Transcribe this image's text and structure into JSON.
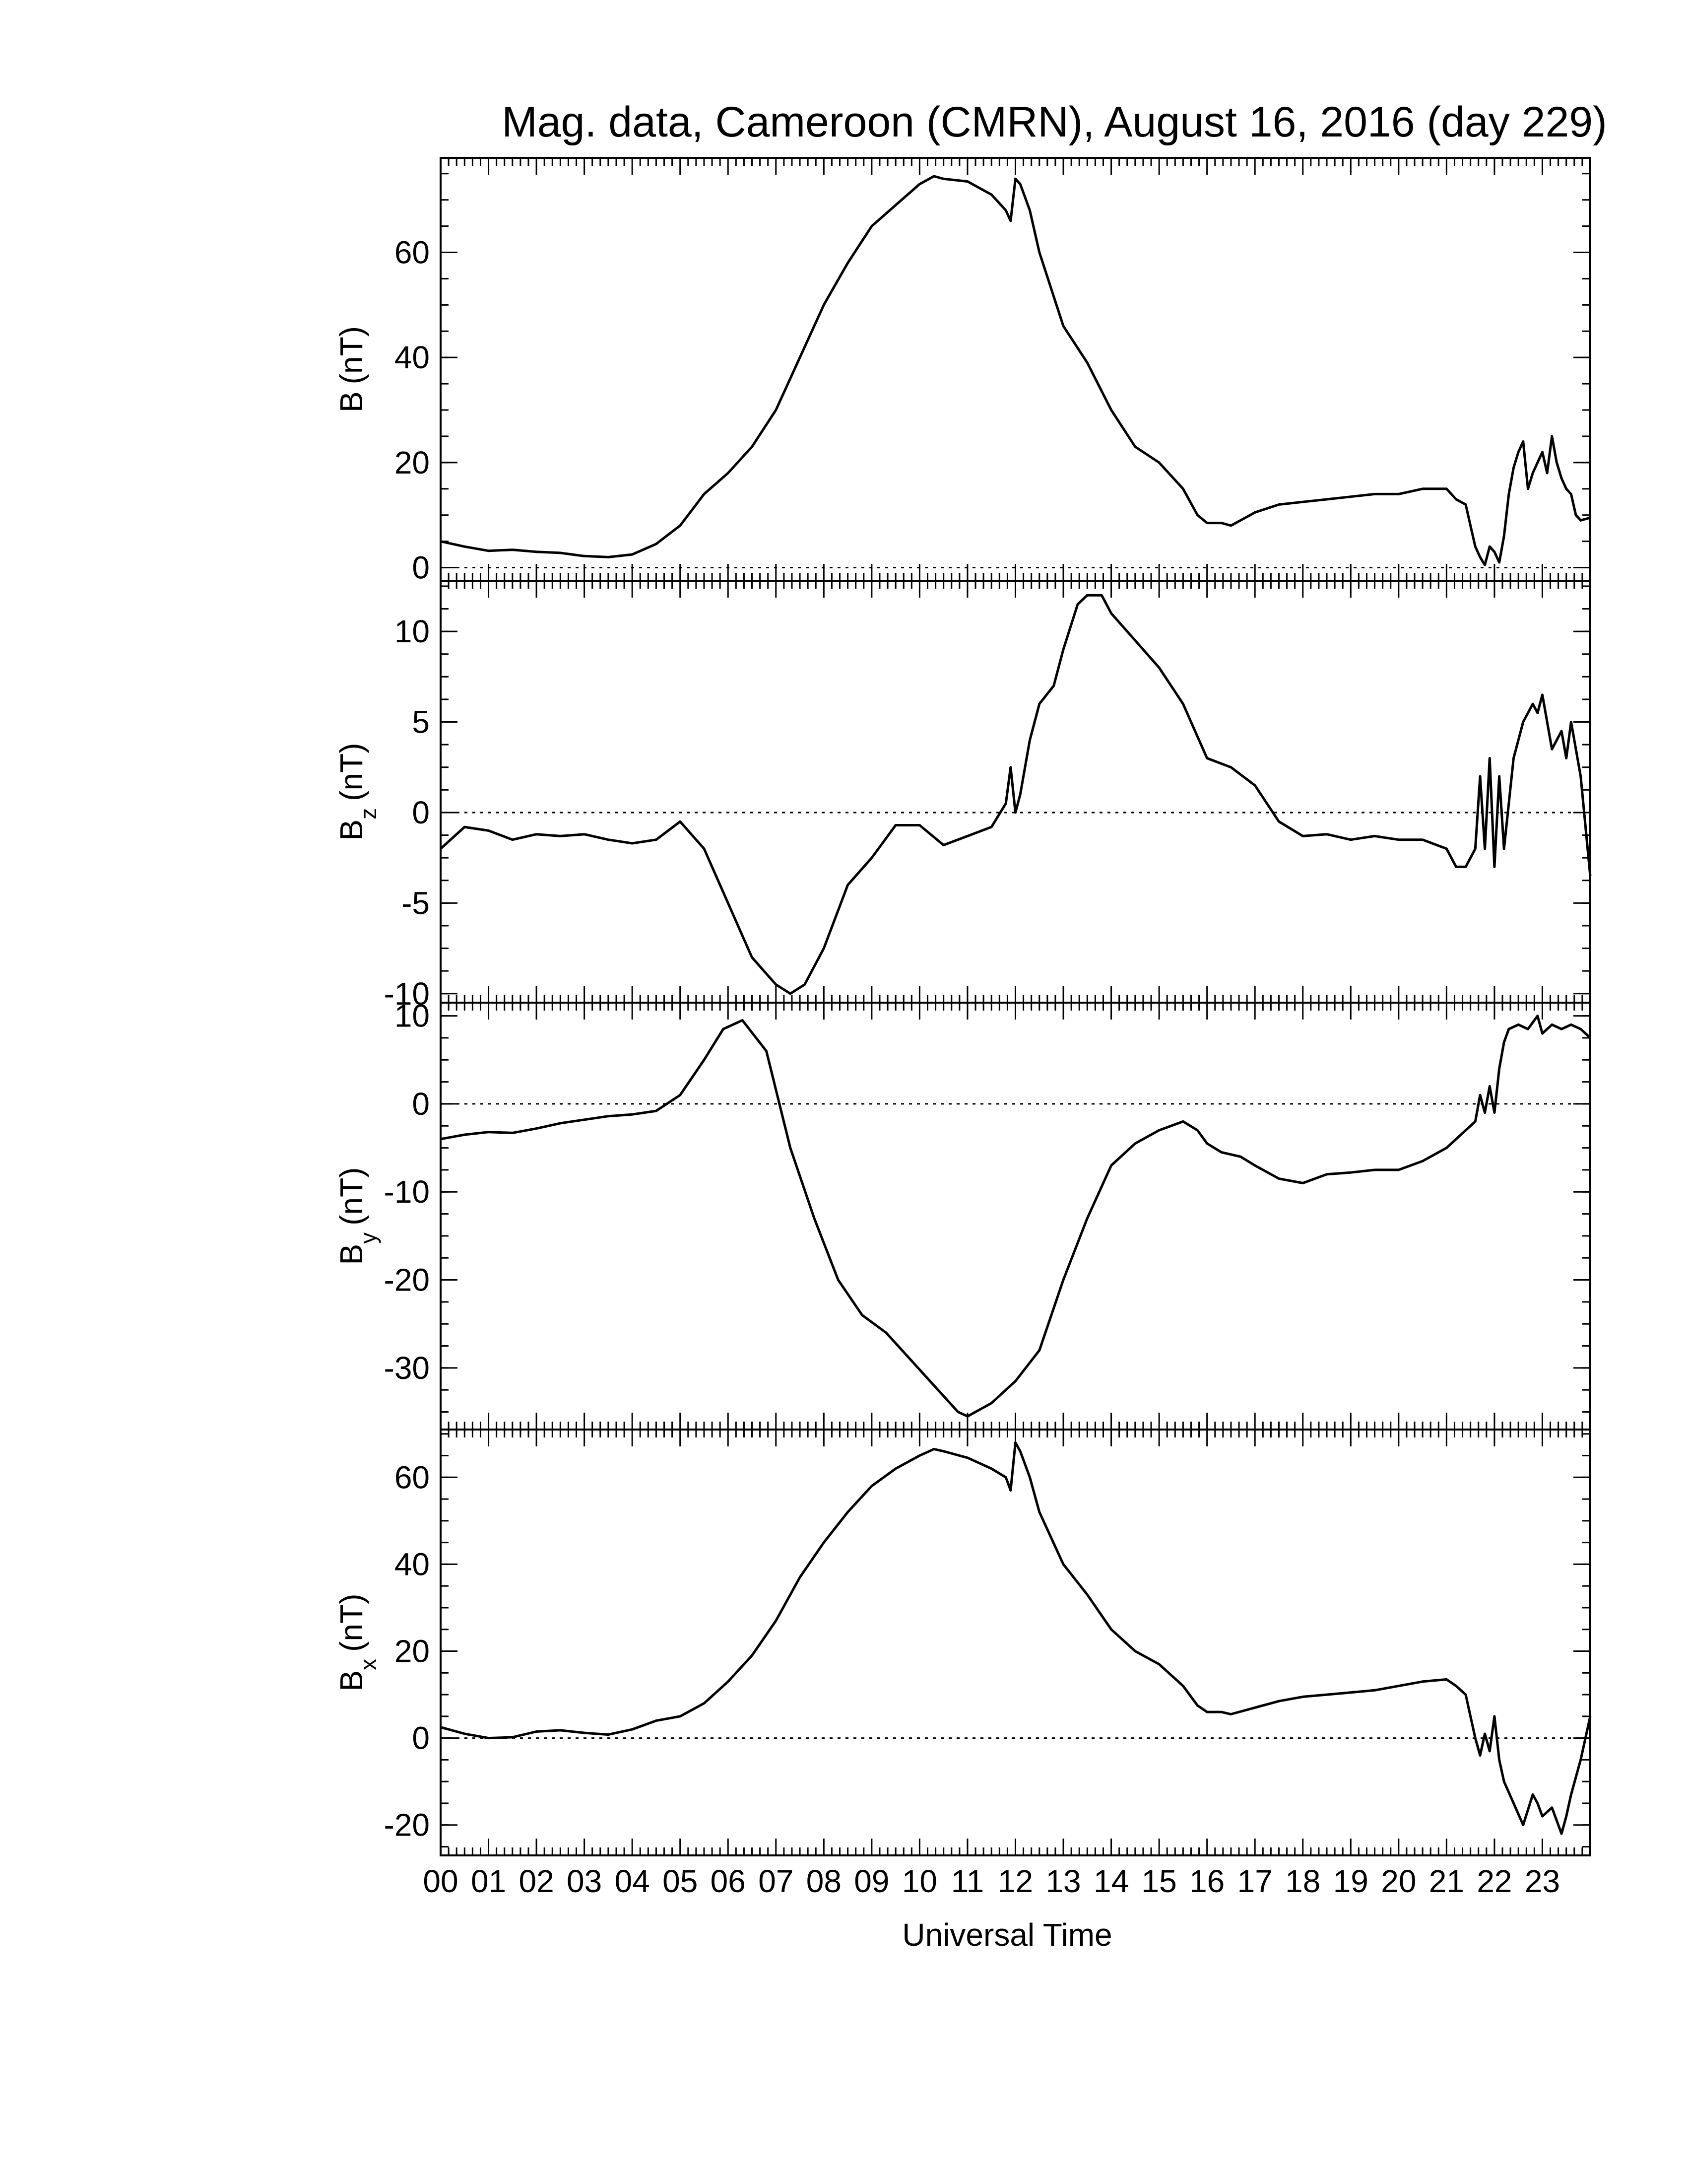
{
  "chart_data": {
    "type": "line",
    "title": "Mag. data, Cameroon (CMRN), August 16, 2016 (day 229)",
    "xlabel": "Universal Time",
    "x_tick_labels": [
      "00",
      "01",
      "02",
      "03",
      "04",
      "05",
      "06",
      "07",
      "08",
      "09",
      "10",
      "11",
      "12",
      "13",
      "14",
      "15",
      "16",
      "17",
      "18",
      "19",
      "20",
      "21",
      "22",
      "23"
    ],
    "xlim": [
      0,
      24
    ],
    "panels": [
      {
        "key": "B",
        "ylabel_main": "B",
        "ylabel_sub": "",
        "ylabel_unit": "(nT)",
        "ylim": [
          -2.5,
          78
        ],
        "yticks": [
          0,
          20,
          40,
          60
        ],
        "ytick_labels": [
          "0",
          "20",
          "40",
          "60"
        ],
        "x": [
          0,
          0.5,
          1,
          1.5,
          2,
          2.5,
          3,
          3.5,
          4,
          4.5,
          5,
          5.5,
          6,
          6.5,
          7,
          7.5,
          8,
          8.5,
          9,
          9.5,
          10,
          10.3,
          10.5,
          11,
          11.5,
          11.8,
          11.9,
          12.0,
          12.1,
          12.3,
          12.5,
          13,
          13.5,
          14,
          14.5,
          15,
          15.5,
          15.8,
          16,
          16.3,
          16.5,
          17,
          17.5,
          18,
          18.5,
          19,
          19.5,
          20,
          20.5,
          21,
          21.2,
          21.4,
          21.5,
          21.6,
          21.7,
          21.8,
          21.9,
          22.0,
          22.1,
          22.2,
          22.3,
          22.4,
          22.5,
          22.6,
          22.7,
          22.8,
          22.9,
          23.0,
          23.1,
          23.2,
          23.3,
          23.4,
          23.5,
          23.6,
          23.7,
          23.8,
          24
        ],
        "y": [
          5,
          4,
          3.2,
          3.4,
          3,
          2.8,
          2.2,
          2,
          2.5,
          4.5,
          8,
          14,
          18,
          23,
          30,
          40,
          50,
          58,
          65,
          69,
          73,
          74.5,
          74,
          73.5,
          71,
          68,
          66,
          74,
          73,
          68,
          60,
          46,
          39,
          30,
          23,
          20,
          15,
          10,
          8.5,
          8.5,
          8,
          10.5,
          12,
          12.5,
          13,
          13.5,
          14,
          14,
          15,
          15,
          13,
          12,
          8,
          4,
          2,
          0.5,
          4,
          3,
          1,
          6,
          14,
          19,
          22,
          24,
          15,
          18,
          20,
          22,
          18,
          25,
          20,
          17,
          15,
          14,
          10,
          9,
          9.5
        ]
      },
      {
        "key": "Bz",
        "ylabel_main": "B",
        "ylabel_sub": "z",
        "ylabel_unit": "(nT)",
        "ylim": [
          -10.5,
          12.8
        ],
        "yticks": [
          -10,
          -5,
          0,
          5,
          10
        ],
        "ytick_labels": [
          "-10",
          "-5",
          "0",
          "5",
          "10"
        ],
        "x": [
          0,
          0.5,
          1,
          1.5,
          2,
          2.5,
          3,
          3.5,
          4,
          4.5,
          5,
          5.5,
          6,
          6.5,
          7,
          7.3,
          7.6,
          8,
          8.5,
          9,
          9.5,
          10,
          10.5,
          11,
          11.5,
          11.8,
          11.9,
          12.0,
          12.1,
          12.3,
          12.5,
          12.8,
          13,
          13.3,
          13.5,
          13.8,
          14,
          14.5,
          15,
          15.5,
          16,
          16.5,
          17,
          17.5,
          18,
          18.5,
          19,
          19.5,
          20,
          20.5,
          21,
          21.2,
          21.4,
          21.6,
          21.7,
          21.8,
          21.9,
          22.0,
          22.1,
          22.2,
          22.4,
          22.6,
          22.8,
          22.9,
          23.0,
          23.2,
          23.4,
          23.5,
          23.6,
          23.8,
          24
        ],
        "y": [
          -2,
          -0.8,
          -1,
          -1.5,
          -1.2,
          -1.3,
          -1.2,
          -1.5,
          -1.7,
          -1.5,
          -0.5,
          -2,
          -5,
          -8,
          -9.5,
          -10,
          -9.5,
          -7.5,
          -4,
          -2.5,
          -0.7,
          -0.7,
          -1.8,
          -1.3,
          -0.8,
          0.5,
          2.5,
          0,
          1,
          4,
          6,
          7,
          9,
          11.5,
          12,
          12,
          11,
          9.5,
          8,
          6,
          3,
          2.5,
          1.5,
          -0.5,
          -1.3,
          -1.2,
          -1.5,
          -1.3,
          -1.5,
          -1.5,
          -2,
          -3,
          -3,
          -2,
          2,
          -2,
          3,
          -3,
          2,
          -2,
          3,
          5,
          6,
          5.5,
          6.5,
          3.5,
          4.5,
          3,
          5,
          2,
          -3.5
        ]
      },
      {
        "key": "By",
        "ylabel_main": "B",
        "ylabel_sub": "y",
        "ylabel_unit": "(nT)",
        "ylim": [
          -37,
          11.5
        ],
        "yticks": [
          -30,
          -20,
          -10,
          0,
          10
        ],
        "ytick_labels": [
          "-30",
          "-20",
          "-10",
          "0",
          "10"
        ],
        "x": [
          0,
          0.5,
          1,
          1.5,
          2,
          2.5,
          3,
          3.5,
          4,
          4.5,
          5,
          5.5,
          5.9,
          6.3,
          6.8,
          7.3,
          7.8,
          8.3,
          8.8,
          9.3,
          9.8,
          10.3,
          10.8,
          11,
          11.5,
          12,
          12.5,
          13,
          13.5,
          14,
          14.5,
          15,
          15.5,
          15.8,
          16,
          16.3,
          16.7,
          17,
          17.5,
          18,
          18.5,
          19,
          19.5,
          20,
          20.5,
          21,
          21.3,
          21.6,
          21.7,
          21.8,
          21.9,
          22.0,
          22.1,
          22.2,
          22.3,
          22.5,
          22.7,
          22.9,
          23.0,
          23.2,
          23.4,
          23.6,
          23.8,
          24
        ],
        "y": [
          -4,
          -3.5,
          -3.2,
          -3.3,
          -2.8,
          -2.2,
          -1.8,
          -1.4,
          -1.2,
          -0.8,
          1,
          5,
          8.5,
          9.5,
          6,
          -5,
          -13,
          -20,
          -24,
          -26,
          -29,
          -32,
          -35,
          -35.5,
          -34,
          -31.5,
          -28,
          -20,
          -13,
          -7,
          -4.5,
          -3,
          -2,
          -3,
          -4.5,
          -5.5,
          -6,
          -7,
          -8.5,
          -9,
          -8,
          -7.8,
          -7.5,
          -7.5,
          -6.5,
          -5,
          -3.5,
          -2,
          1,
          -1,
          2,
          -1,
          4,
          7,
          8.5,
          9,
          8.5,
          10,
          8,
          9,
          8.5,
          9,
          8.5,
          7.5
        ]
      },
      {
        "key": "Bx",
        "ylabel_main": "B",
        "ylabel_sub": "x",
        "ylabel_unit": "(nT)",
        "ylim": [
          -27,
          71
        ],
        "yticks": [
          -20,
          0,
          20,
          40,
          60
        ],
        "ytick_labels": [
          "-20",
          "0",
          "20",
          "40",
          "60"
        ],
        "x": [
          0,
          0.5,
          1,
          1.5,
          2,
          2.5,
          3,
          3.5,
          4,
          4.5,
          5,
          5.5,
          6,
          6.5,
          7,
          7.5,
          8,
          8.5,
          9,
          9.5,
          10,
          10.3,
          10.5,
          11,
          11.5,
          11.8,
          11.9,
          12.0,
          12.1,
          12.3,
          12.5,
          13,
          13.5,
          14,
          14.5,
          15,
          15.5,
          15.8,
          16,
          16.3,
          16.5,
          17,
          17.5,
          18,
          18.5,
          19,
          19.5,
          20,
          20.5,
          21,
          21.2,
          21.4,
          21.5,
          21.6,
          21.7,
          21.8,
          21.9,
          22.0,
          22.1,
          22.2,
          22.4,
          22.6,
          22.8,
          22.9,
          23.0,
          23.2,
          23.4,
          23.5,
          23.6,
          23.8,
          24
        ],
        "y": [
          2.5,
          1,
          0,
          0.2,
          1.5,
          1.8,
          1.2,
          0.8,
          2,
          4,
          5,
          8,
          13,
          19,
          27,
          37,
          45,
          52,
          58,
          62,
          65,
          66.5,
          66,
          64.5,
          62,
          60,
          57,
          68,
          66,
          60,
          52,
          40,
          33,
          25,
          20,
          17,
          12,
          7.5,
          6,
          6,
          5.5,
          7,
          8.5,
          9.5,
          10,
          10.5,
          11,
          12,
          13,
          13.5,
          12,
          10,
          5,
          0,
          -4,
          1,
          -3,
          5,
          -5,
          -10,
          -15,
          -20,
          -13,
          -15,
          -18,
          -16,
          -22,
          -18,
          -13,
          -5,
          5
        ]
      }
    ]
  }
}
